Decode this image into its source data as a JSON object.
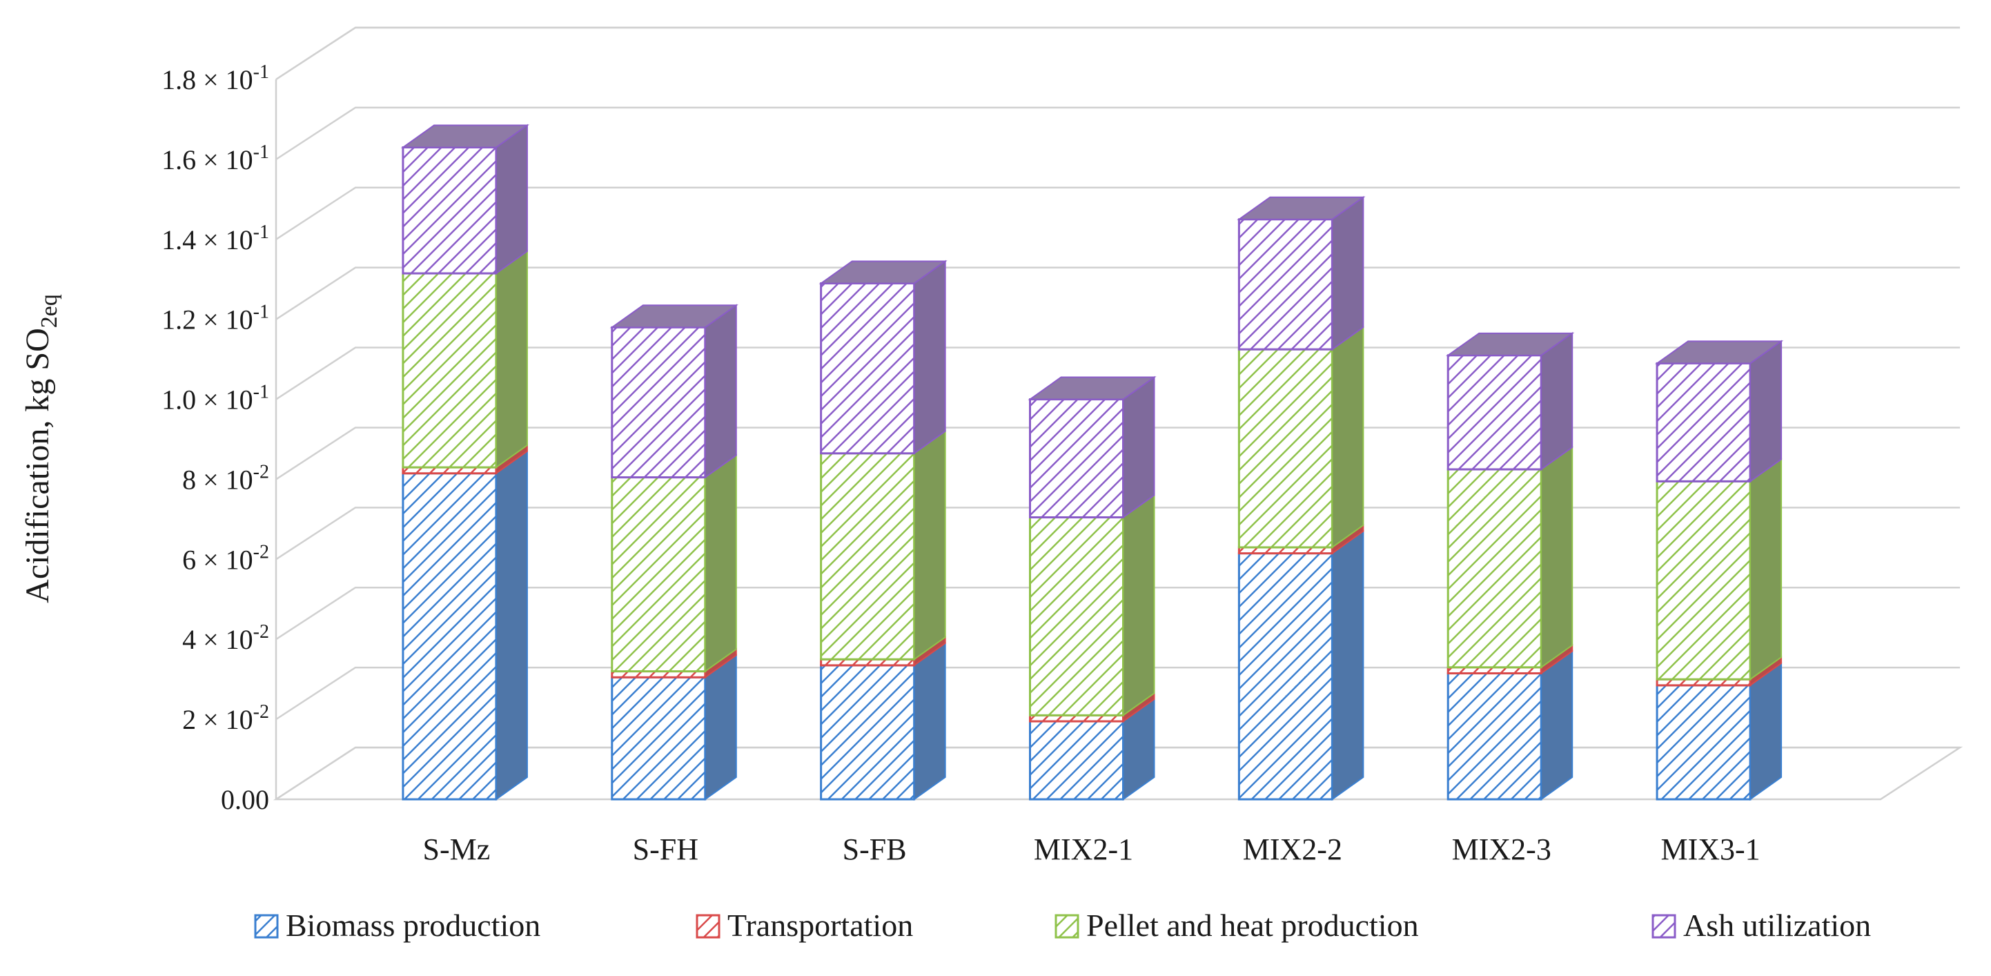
{
  "chart_data": {
    "type": "bar",
    "stacked": true,
    "three_d": true,
    "categories": [
      "S-Mz",
      "S-FH",
      "S-FB",
      "MIX2-1",
      "MIX2-2",
      "MIX2-3",
      "MIX3-1"
    ],
    "series": [
      {
        "name": "Biomass production",
        "values": [
          0.0815,
          0.0305,
          0.0335,
          0.0195,
          0.0615,
          0.0315,
          0.0285
        ],
        "color": "#3a7fd0",
        "side_color": "#4f76a8"
      },
      {
        "name": "Transportation",
        "values": [
          0.0015,
          0.0015,
          0.0015,
          0.0015,
          0.0015,
          0.0015,
          0.0015
        ],
        "color": "#d94a4a",
        "side_color": "#b94a4a"
      },
      {
        "name": "Pellet and heat production",
        "values": [
          0.0485,
          0.0485,
          0.0515,
          0.0495,
          0.0495,
          0.0495,
          0.0495
        ],
        "color": "#8fc24a",
        "side_color": "#7e9a56"
      },
      {
        "name": "Ash utilization",
        "values": [
          0.0315,
          0.0375,
          0.0425,
          0.0295,
          0.0325,
          0.0285,
          0.0295
        ],
        "color": "#8a5cc8",
        "side_color": "#7f6a9c"
      }
    ],
    "ylabel": "Acidification,  kg SO2eq",
    "ylabel_main": "Acidification,  kg SO",
    "ylabel_sub": "2eq",
    "ylim": [
      0,
      0.18
    ],
    "y_ticks": [
      0,
      0.02,
      0.04,
      0.06,
      0.08,
      0.1,
      0.12,
      0.14,
      0.16,
      0.18
    ],
    "y_tick_labels": [
      {
        "mant": "0.00",
        "exp": ""
      },
      {
        "mant": "2 × 10",
        "exp": "-2"
      },
      {
        "mant": "4 × 10",
        "exp": "-2"
      },
      {
        "mant": "6 × 10",
        "exp": "-2"
      },
      {
        "mant": "8 × 10",
        "exp": "-2"
      },
      {
        "mant": "1.0 × 10",
        "exp": "-1"
      },
      {
        "mant": "1.2 × 10",
        "exp": "-1"
      },
      {
        "mant": "1.4 × 10",
        "exp": "-1"
      },
      {
        "mant": "1.6 × 10",
        "exp": "-1"
      },
      {
        "mant": "1.8 × 10",
        "exp": "-1"
      }
    ],
    "grid": true,
    "legend": "bottom"
  }
}
